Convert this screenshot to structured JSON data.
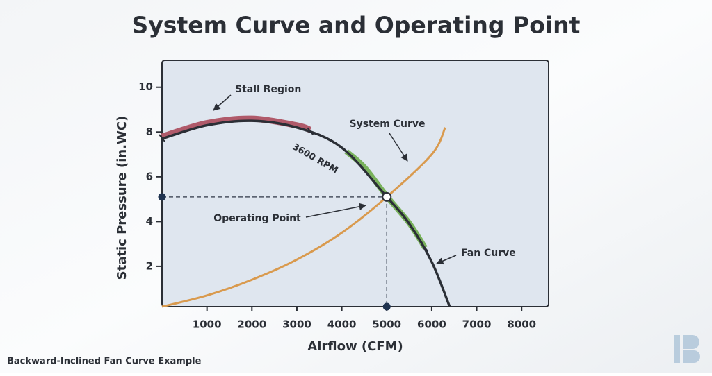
{
  "chart_data": {
    "type": "line",
    "title": "System Curve and Operating Point",
    "xlabel": "Airflow (CFM)",
    "ylabel": "Static Pressure (in.WC)",
    "footer": "Backward-Inclined Fan Curve Example",
    "speed_label": "3600 RPM",
    "xlim": [
      0,
      8600
    ],
    "ylim": [
      0.2,
      11.2
    ],
    "xticks": [
      1000,
      2000,
      3000,
      4000,
      5000,
      6000,
      7000,
      8000
    ],
    "yticks": [
      2,
      4,
      6,
      8,
      10
    ],
    "series": [
      {
        "name": "Fan Curve",
        "color": "#2b2f36",
        "x": [
          0,
          1000,
          2000,
          3000,
          4000,
          5000,
          5500,
          6000,
          6400
        ],
        "values": [
          7.7,
          8.3,
          8.5,
          8.2,
          7.3,
          5.1,
          3.9,
          2.2,
          0.2
        ]
      },
      {
        "name": "System Curve",
        "color": "#d99a4e",
        "x": [
          0,
          1000,
          2000,
          3000,
          4000,
          5000,
          6000,
          6300
        ],
        "values": [
          0.2,
          0.7,
          1.4,
          2.3,
          3.5,
          5.1,
          7.0,
          8.2
        ]
      },
      {
        "name": "Stall Region",
        "color": "#b05a6a",
        "x": [
          0,
          1000,
          2000,
          3000,
          3300
        ],
        "values": [
          7.7,
          8.3,
          8.5,
          8.2,
          8.0
        ]
      },
      {
        "color": "#79b25c",
        "x": [
          4100,
          4500,
          5000,
          5500,
          5850
        ],
        "values": [
          7.1,
          6.4,
          5.1,
          3.9,
          2.8
        ]
      }
    ],
    "operating_point": {
      "label": "Operating Point",
      "x": 5000,
      "y": 5.1
    }
  }
}
